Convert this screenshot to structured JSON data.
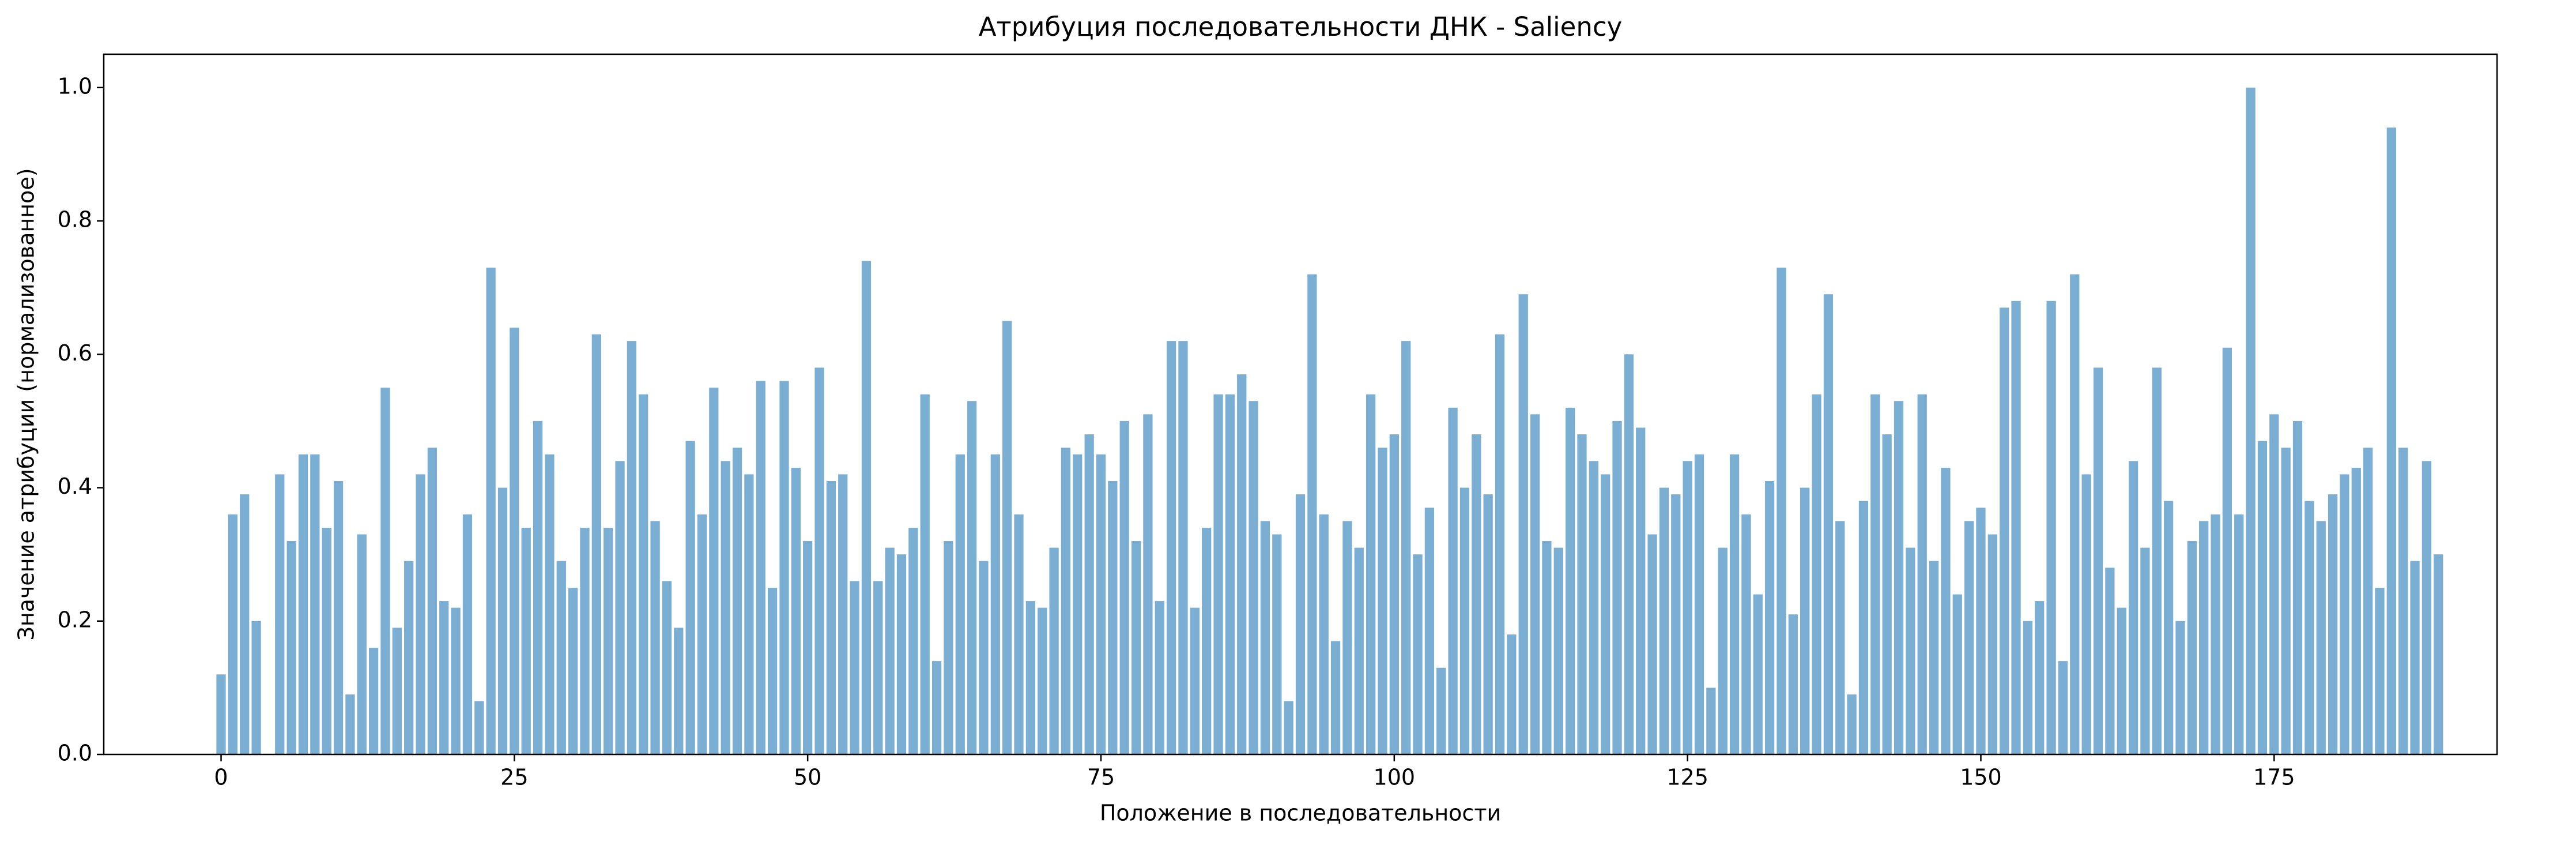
{
  "chart_data": {
    "type": "bar",
    "title": "Атрибуция последовательности ДНК - Saliency",
    "xlabel": "Положение в последовательности",
    "ylabel": "Значение атрибуции (нормализованное)",
    "color": "#7aaed3",
    "grid": false,
    "x": [
      0,
      1,
      2,
      3,
      4,
      5,
      6,
      7,
      8,
      9,
      10,
      11,
      12,
      13,
      14,
      15,
      16,
      17,
      18,
      19,
      20,
      21,
      22,
      23,
      24,
      25,
      26,
      27,
      28,
      29,
      30,
      31,
      32,
      33,
      34,
      35,
      36,
      37,
      38,
      39,
      40,
      41,
      42,
      43,
      44,
      45,
      46,
      47,
      48,
      49,
      50,
      51,
      52,
      53,
      54,
      55,
      56,
      57,
      58,
      59,
      60,
      61,
      62,
      63,
      64,
      65,
      66,
      67,
      68,
      69,
      70,
      71,
      72,
      73,
      74,
      75,
      76,
      77,
      78,
      79,
      80,
      81,
      82,
      83,
      84,
      85,
      86,
      87,
      88,
      89,
      90,
      91,
      92,
      93,
      94,
      95,
      96,
      97,
      98,
      99,
      100,
      101,
      102,
      103,
      104,
      105,
      106,
      107,
      108,
      109,
      110,
      111,
      112,
      113,
      114,
      115,
      116,
      117,
      118,
      119,
      120,
      121,
      122,
      123,
      124,
      125,
      126,
      127,
      128,
      129,
      130,
      131,
      132,
      133,
      134,
      135,
      136,
      137,
      138,
      139,
      140,
      141,
      142,
      143,
      144,
      145,
      146,
      147,
      148,
      149,
      150,
      151,
      152,
      153,
      154,
      155,
      156,
      157,
      158,
      159,
      160,
      161,
      162,
      163,
      164,
      165,
      166,
      167,
      168,
      169,
      170,
      171,
      172,
      173,
      174,
      175,
      176,
      177,
      178,
      179,
      180,
      181,
      182,
      183,
      184,
      185,
      186,
      187,
      188,
      189
    ],
    "values": [
      0.12,
      0.36,
      0.39,
      0.2,
      0,
      0.42,
      0.32,
      0.45,
      0.45,
      0.34,
      0.41,
      0.09,
      0.33,
      0.16,
      0.55,
      0.19,
      0.29,
      0.42,
      0.46,
      0.23,
      0.22,
      0.36,
      0.08,
      0.73,
      0.4,
      0.64,
      0.34,
      0.5,
      0.45,
      0.29,
      0.25,
      0.34,
      0.63,
      0.34,
      0.44,
      0.62,
      0.54,
      0.35,
      0.26,
      0.19,
      0.47,
      0.36,
      0.55,
      0.44,
      0.46,
      0.42,
      0.56,
      0.25,
      0.56,
      0.43,
      0.32,
      0.58,
      0.41,
      0.42,
      0.26,
      0.74,
      0.26,
      0.31,
      0.3,
      0.34,
      0.54,
      0.14,
      0.32,
      0.45,
      0.53,
      0.29,
      0.45,
      0.65,
      0.36,
      0.23,
      0.22,
      0.31,
      0.46,
      0.45,
      0.48,
      0.45,
      0.41,
      0.5,
      0.32,
      0.51,
      0.23,
      0.62,
      0.62,
      0.22,
      0.34,
      0.54,
      0.54,
      0.57,
      0.53,
      0.35,
      0.33,
      0.08,
      0.39,
      0.72,
      0.36,
      0.17,
      0.35,
      0.31,
      0.54,
      0.46,
      0.48,
      0.62,
      0.3,
      0.37,
      0.13,
      0.52,
      0.4,
      0.48,
      0.39,
      0.63,
      0.18,
      0.69,
      0.51,
      0.32,
      0.31,
      0.52,
      0.48,
      0.44,
      0.42,
      0.5,
      0.6,
      0.49,
      0.33,
      0.4,
      0.39,
      0.44,
      0.45,
      0.1,
      0.31,
      0.45,
      0.36,
      0.24,
      0.41,
      0.73,
      0.21,
      0.4,
      0.54,
      0.69,
      0.35,
      0.09,
      0.38,
      0.54,
      0.48,
      0.53,
      0.31,
      0.54,
      0.29,
      0.43,
      0.24,
      0.35,
      0.37,
      0.33,
      0.67,
      0.68,
      0.2,
      0.23,
      0.68,
      0.14,
      0.72,
      0.42,
      0.58,
      0.28,
      0.22,
      0.44,
      0.31,
      0.58,
      0.38,
      0.2,
      0.32,
      0.35,
      0.36,
      0.61,
      0.36,
      1.0,
      0.47,
      0.51,
      0.46,
      0.5,
      0.38,
      0.35,
      0.39,
      0.42,
      0.43,
      0.46,
      0.25,
      0.94,
      0.46,
      0.29,
      0.44,
      0.3
    ],
    "xlim": [
      -10,
      194
    ],
    "xticks": [
      0,
      25,
      50,
      75,
      100,
      125,
      150,
      175
    ],
    "ylim": [
      0,
      1.05
    ],
    "yticks": [
      {
        "value": 0,
        "label": "0.0"
      },
      0.2,
      0.4,
      0.6,
      0.8,
      {
        "value": 1,
        "label": "1.0"
      }
    ]
  }
}
